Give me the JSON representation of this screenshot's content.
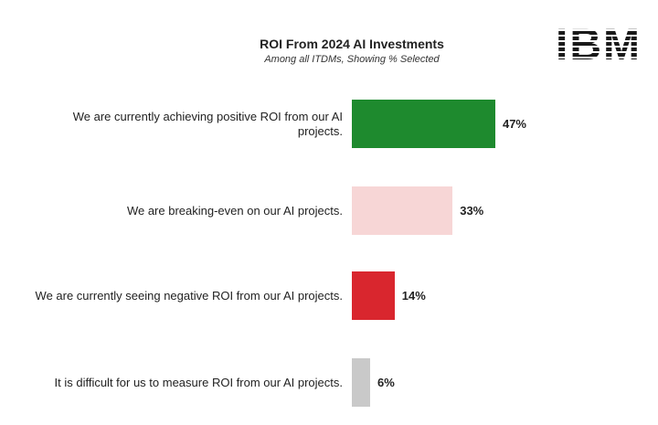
{
  "logo": "IBM",
  "chart_data": {
    "type": "bar",
    "orientation": "horizontal",
    "title": "ROI From 2024 AI Investments",
    "subtitle": "Among all ITDMs, Showing % Selected",
    "categories": [
      "We are currently achieving positive ROI from our AI projects.",
      "We are breaking-even on our AI projects.",
      "We are currently seeing negative ROI from our AI projects.",
      "It is difficult for us to measure ROI from our AI projects."
    ],
    "values": [
      47,
      33,
      14,
      6
    ],
    "value_labels": [
      "47%",
      "33%",
      "14%",
      "6%"
    ],
    "colors": [
      "#1e8a2e",
      "#f7d6d6",
      "#d9262e",
      "#c9c9c9"
    ]
  }
}
